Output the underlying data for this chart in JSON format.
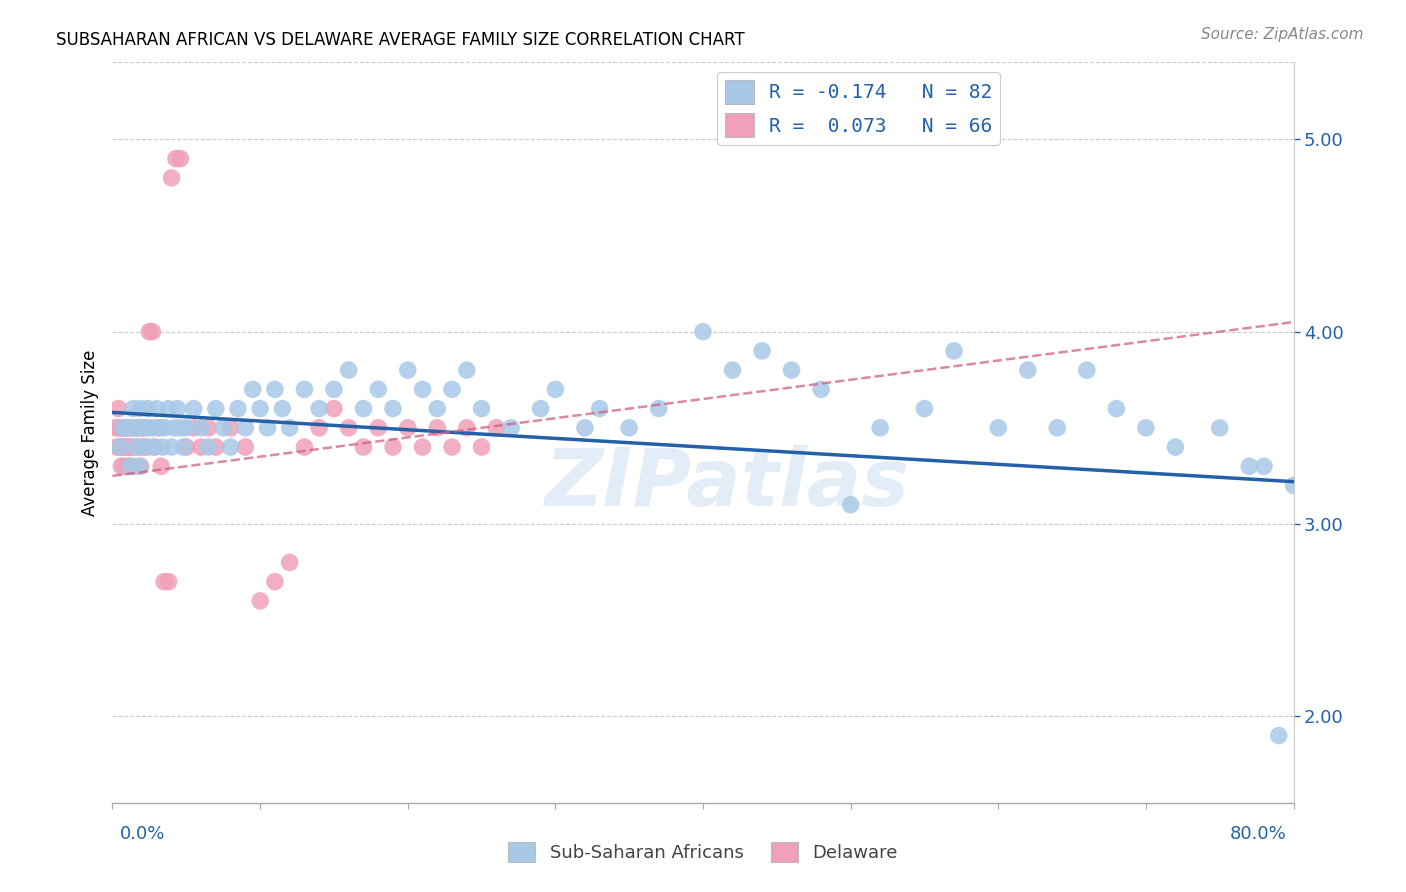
{
  "title": "SUBSAHARAN AFRICAN VS DELAWARE AVERAGE FAMILY SIZE CORRELATION CHART",
  "source": "Source: ZipAtlas.com",
  "ylabel": "Average Family Size",
  "right_yticks": [
    2.0,
    3.0,
    4.0,
    5.0
  ],
  "xlim": [
    0.0,
    0.8
  ],
  "ylim": [
    1.55,
    5.4
  ],
  "blue_color": "#a8c8e8",
  "blue_line_color": "#2461a8",
  "pink_color": "#f0a0b8",
  "pink_line_color": "#d06080",
  "watermark": "ZIPatlas",
  "blue_scatter_x": [
    0.005,
    0.007,
    0.01,
    0.012,
    0.014,
    0.015,
    0.016,
    0.017,
    0.018,
    0.019,
    0.02,
    0.022,
    0.024,
    0.025,
    0.027,
    0.028,
    0.03,
    0.032,
    0.034,
    0.036,
    0.038,
    0.04,
    0.042,
    0.044,
    0.046,
    0.048,
    0.05,
    0.055,
    0.06,
    0.065,
    0.07,
    0.075,
    0.08,
    0.085,
    0.09,
    0.095,
    0.1,
    0.105,
    0.11,
    0.115,
    0.12,
    0.13,
    0.14,
    0.15,
    0.16,
    0.17,
    0.18,
    0.19,
    0.2,
    0.21,
    0.22,
    0.23,
    0.24,
    0.25,
    0.27,
    0.29,
    0.3,
    0.32,
    0.33,
    0.35,
    0.37,
    0.4,
    0.42,
    0.44,
    0.46,
    0.48,
    0.5,
    0.52,
    0.55,
    0.57,
    0.6,
    0.62,
    0.64,
    0.66,
    0.68,
    0.7,
    0.72,
    0.75,
    0.77,
    0.78,
    0.79,
    0.8
  ],
  "blue_scatter_y": [
    3.4,
    3.5,
    3.5,
    3.3,
    3.6,
    3.5,
    3.4,
    3.5,
    3.3,
    3.6,
    3.5,
    3.4,
    3.6,
    3.5,
    3.4,
    3.5,
    3.6,
    3.5,
    3.4,
    3.5,
    3.6,
    3.4,
    3.5,
    3.6,
    3.5,
    3.4,
    3.5,
    3.6,
    3.5,
    3.4,
    3.6,
    3.5,
    3.4,
    3.6,
    3.5,
    3.7,
    3.6,
    3.5,
    3.7,
    3.6,
    3.5,
    3.7,
    3.6,
    3.7,
    3.8,
    3.6,
    3.7,
    3.6,
    3.8,
    3.7,
    3.6,
    3.7,
    3.8,
    3.6,
    3.5,
    3.6,
    3.7,
    3.5,
    3.6,
    3.5,
    3.6,
    4.0,
    3.8,
    3.9,
    3.8,
    3.7,
    3.1,
    3.5,
    3.6,
    3.9,
    3.5,
    3.8,
    3.5,
    3.8,
    3.6,
    3.5,
    3.4,
    3.5,
    3.3,
    3.3,
    1.9,
    3.2
  ],
  "pink_scatter_x": [
    0.002,
    0.003,
    0.004,
    0.004,
    0.005,
    0.005,
    0.006,
    0.006,
    0.007,
    0.007,
    0.008,
    0.008,
    0.009,
    0.009,
    0.01,
    0.01,
    0.011,
    0.011,
    0.012,
    0.012,
    0.013,
    0.013,
    0.014,
    0.015,
    0.016,
    0.017,
    0.018,
    0.019,
    0.02,
    0.021,
    0.022,
    0.023,
    0.025,
    0.027,
    0.029,
    0.031,
    0.033,
    0.035,
    0.038,
    0.04,
    0.043,
    0.046,
    0.05,
    0.055,
    0.06,
    0.065,
    0.07,
    0.08,
    0.09,
    0.1,
    0.11,
    0.12,
    0.13,
    0.14,
    0.15,
    0.16,
    0.17,
    0.18,
    0.19,
    0.2,
    0.21,
    0.22,
    0.23,
    0.24,
    0.25,
    0.26
  ],
  "pink_scatter_y": [
    3.5,
    3.4,
    3.5,
    3.6,
    3.4,
    3.5,
    3.3,
    3.5,
    3.4,
    3.5,
    3.4,
    3.3,
    3.5,
    3.4,
    3.5,
    3.3,
    3.4,
    3.5,
    3.4,
    3.3,
    3.5,
    3.4,
    3.3,
    3.5,
    3.4,
    3.5,
    3.4,
    3.3,
    3.5,
    3.4,
    3.5,
    3.4,
    4.0,
    4.0,
    3.4,
    3.5,
    3.3,
    2.7,
    2.7,
    4.8,
    4.9,
    4.9,
    3.4,
    3.5,
    3.4,
    3.5,
    3.4,
    3.5,
    3.4,
    2.6,
    2.7,
    2.8,
    3.4,
    3.5,
    3.6,
    3.5,
    3.4,
    3.5,
    3.4,
    3.5,
    3.4,
    3.5,
    3.4,
    3.5,
    3.4,
    3.5
  ],
  "blue_line_x0": 0.0,
  "blue_line_y0": 3.58,
  "blue_line_x1": 0.8,
  "blue_line_y1": 3.22,
  "pink_line_x0": 0.0,
  "pink_line_y0": 3.25,
  "pink_line_x1": 0.8,
  "pink_line_y1": 4.05
}
